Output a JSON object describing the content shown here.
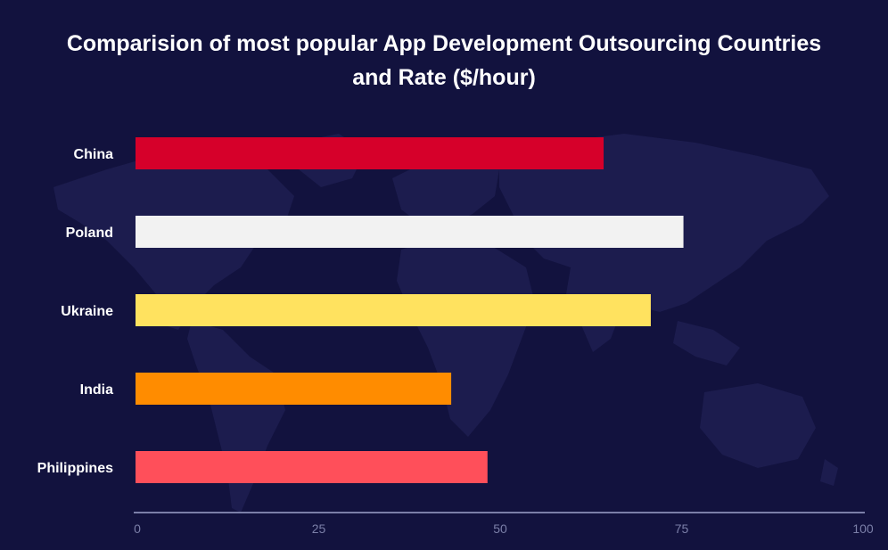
{
  "chart_data": {
    "type": "bar",
    "orientation": "horizontal",
    "title_lines": [
      "Comparision of most popular App Development Outsourcing Countries",
      "and Rate ($/hour)"
    ],
    "categories": [
      "China",
      "Poland",
      "Ukraine",
      "India",
      "Philippines"
    ],
    "values": [
      64.5,
      75.5,
      71,
      43.5,
      48.5
    ],
    "xlim": [
      0,
      100
    ],
    "xticks": [
      "0",
      "25",
      "50",
      "75",
      "100"
    ],
    "xtick_values": [
      0,
      25,
      50,
      75,
      100
    ],
    "grid": false,
    "legend": "none",
    "colors": {
      "background": "#12123e",
      "map": "#1c1c4e",
      "axis": "#7b7fa8",
      "bars": [
        "#d6002a",
        "#f2f2f2",
        "#ffe25f",
        "#ff8c00",
        "#ff4f5a"
      ]
    }
  }
}
